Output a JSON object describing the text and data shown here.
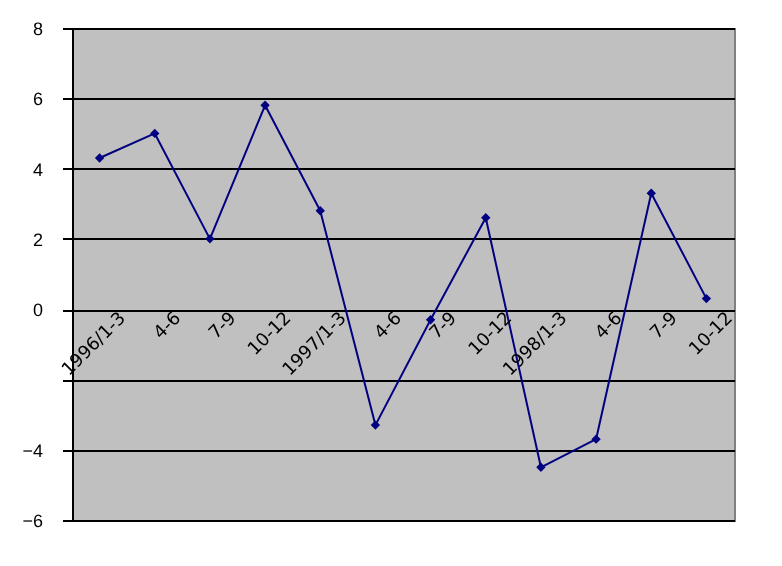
{
  "chart_data": {
    "type": "line",
    "categories": [
      "1996/1-3",
      "4-6",
      "7-9",
      "10-12",
      "1997/1-3",
      "4-6",
      "7-9",
      "10-12",
      "1998/1-3",
      "4-6",
      "7-9",
      "10-12"
    ],
    "series": [
      {
        "color": "#000080",
        "values": [
          4.3,
          5.0,
          2.0,
          5.8,
          2.8,
          -3.3,
          -0.3,
          2.6,
          -4.5,
          -3.7,
          3.3,
          0.3
        ]
      }
    ],
    "ylim": [
      -6,
      8
    ],
    "yticks": [
      -6,
      -4,
      {
        "value": -2,
        "label": null
      },
      0,
      2,
      4,
      6,
      8
    ],
    "grid": "y",
    "marker": "diamond",
    "line_style": "solid"
  }
}
